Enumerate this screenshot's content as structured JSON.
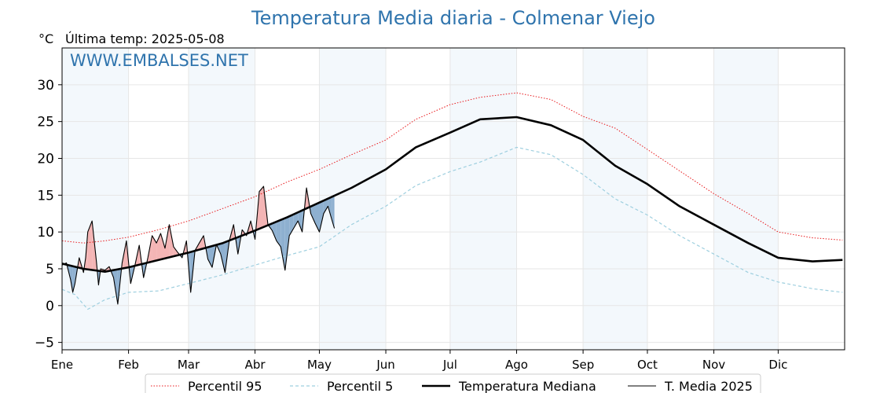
{
  "chart_data": {
    "type": "line",
    "title": "Temperatura Media diaria - Colmenar Viejo",
    "unit_label": "°C",
    "last_temp_text": "Última temp: 2025-05-08",
    "watermark": "WWW.EMBALSES.NET",
    "ylim": [
      -6,
      35
    ],
    "yticks": [
      -5,
      0,
      5,
      10,
      15,
      20,
      25,
      30
    ],
    "xlim_days": [
      0,
      365
    ],
    "months": [
      "Ene",
      "Feb",
      "Mar",
      "Abr",
      "May",
      "Jun",
      "Jul",
      "Ago",
      "Sep",
      "Oct",
      "Nov",
      "Dic"
    ],
    "month_start_days": [
      0,
      31,
      59,
      90,
      120,
      151,
      181,
      212,
      243,
      273,
      304,
      334
    ],
    "grid": true,
    "legend_position": "bottom-center",
    "series": [
      {
        "name": "Percentil 95",
        "style": "dotted",
        "color": "#e8191c",
        "x": [
          0,
          10,
          20,
          31,
          45,
          59,
          75,
          90,
          105,
          120,
          135,
          151,
          165,
          181,
          195,
          212,
          228,
          243,
          258,
          273,
          288,
          304,
          320,
          334,
          350,
          364
        ],
        "y": [
          8.8,
          8.5,
          8.8,
          9.3,
          10.3,
          11.5,
          13.2,
          14.8,
          16.8,
          18.5,
          20.5,
          22.5,
          25.3,
          27.3,
          28.3,
          28.9,
          28.0,
          25.7,
          24.1,
          21.2,
          18.3,
          15.2,
          12.5,
          10.0,
          9.2,
          8.9
        ]
      },
      {
        "name": "Percentil 5",
        "style": "dashed",
        "color": "#9ecfdf",
        "x": [
          0,
          6,
          12,
          20,
          31,
          45,
          59,
          75,
          90,
          105,
          120,
          135,
          151,
          165,
          181,
          195,
          212,
          228,
          243,
          258,
          273,
          288,
          304,
          320,
          334,
          350,
          364
        ],
        "y": [
          2.2,
          1.5,
          -0.5,
          0.8,
          1.8,
          2.0,
          3.0,
          4.2,
          5.5,
          6.8,
          8.0,
          11.0,
          13.5,
          16.3,
          18.2,
          19.5,
          21.5,
          20.5,
          17.8,
          14.5,
          12.3,
          9.5,
          7.0,
          4.5,
          3.2,
          2.3,
          1.8
        ]
      },
      {
        "name": "Temperatura Mediana",
        "style": "solid-thick",
        "color": "#000000",
        "x": [
          0,
          10,
          20,
          31,
          45,
          59,
          75,
          90,
          105,
          120,
          135,
          151,
          165,
          181,
          195,
          212,
          228,
          243,
          258,
          273,
          288,
          304,
          320,
          334,
          350,
          364
        ],
        "y": [
          5.7,
          5.0,
          4.6,
          5.2,
          6.2,
          7.2,
          8.5,
          10.2,
          12.0,
          14.0,
          16.0,
          18.5,
          21.5,
          23.5,
          25.3,
          25.6,
          24.5,
          22.5,
          19.0,
          16.5,
          13.5,
          11.0,
          8.5,
          6.5,
          6.0,
          6.2
        ]
      },
      {
        "name": "T. Media 2025",
        "style": "solid-thin",
        "color": "#000000",
        "x": [
          0,
          2,
          4,
          5,
          6,
          8,
          10,
          11,
          12,
          14,
          16,
          17,
          18,
          20,
          22,
          24,
          26,
          28,
          30,
          32,
          34,
          36,
          38,
          40,
          42,
          44,
          46,
          48,
          50,
          52,
          54,
          56,
          58,
          60,
          62,
          64,
          66,
          68,
          70,
          72,
          74,
          76,
          78,
          80,
          82,
          84,
          86,
          88,
          90,
          92,
          94,
          96,
          98,
          100,
          102,
          104,
          106,
          108,
          110,
          112,
          114,
          116,
          118,
          120,
          122,
          124,
          126,
          127
        ],
        "y": [
          5.5,
          5.8,
          3.5,
          1.8,
          3.0,
          6.5,
          4.5,
          6.5,
          10.0,
          11.5,
          6.0,
          2.8,
          5.0,
          4.8,
          5.3,
          3.8,
          0.2,
          5.8,
          8.8,
          3.0,
          5.5,
          8.2,
          3.8,
          6.5,
          9.5,
          8.5,
          9.8,
          7.8,
          11.0,
          8.0,
          7.2,
          6.5,
          8.8,
          1.8,
          7.5,
          8.5,
          9.5,
          6.3,
          5.2,
          8.3,
          7.0,
          4.5,
          8.8,
          11.0,
          7.0,
          10.3,
          9.5,
          11.5,
          9.0,
          15.5,
          16.2,
          11.0,
          10.2,
          8.8,
          8.0,
          4.8,
          9.5,
          10.5,
          11.5,
          10.0,
          16.0,
          12.5,
          11.2,
          10.0,
          12.5,
          13.5,
          11.5,
          10.5
        ]
      }
    ]
  }
}
